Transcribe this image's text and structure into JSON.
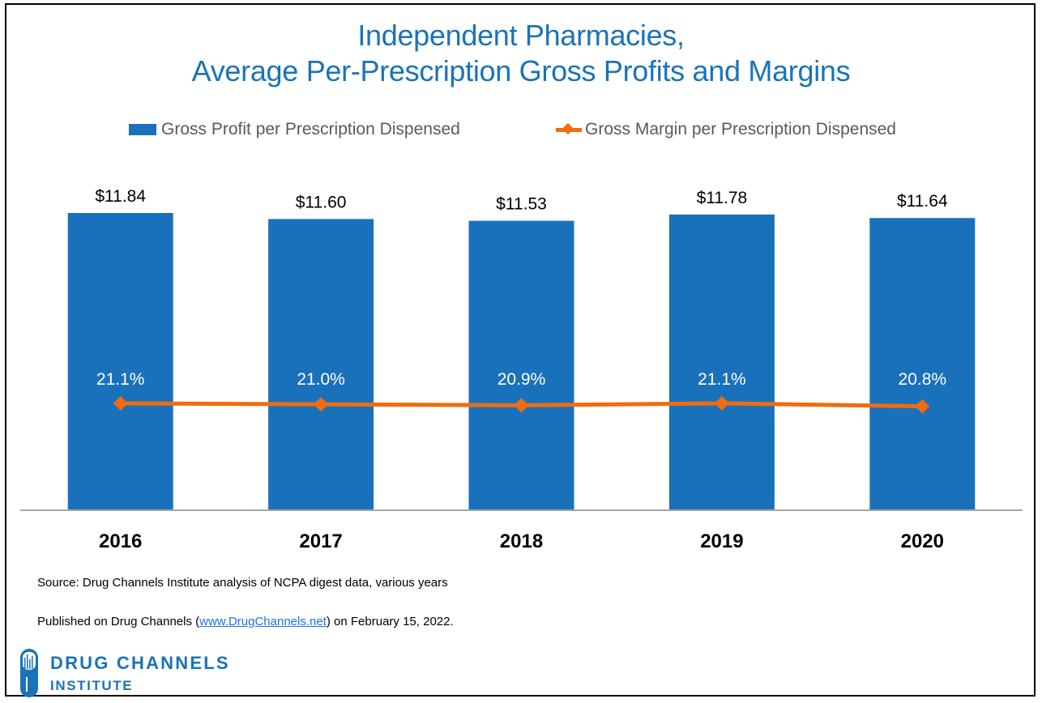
{
  "chart_data": {
    "type": "bar",
    "title": "Independent Pharmacies, Average Per-Prescription Gross Profits and Margins",
    "title_lines": [
      "Independent Pharmacies,",
      "Average Per-Prescription Gross Profits and Margins"
    ],
    "categories": [
      "2016",
      "2017",
      "2018",
      "2019",
      "2020"
    ],
    "series": [
      {
        "name": "Gross Profit per Prescription Dispensed",
        "type": "bar",
        "color": "#1a71bb",
        "values": [
          11.84,
          11.6,
          11.53,
          11.78,
          11.64
        ],
        "labels": [
          "$11.84",
          "$11.60",
          "$11.53",
          "$11.78",
          "$11.64"
        ]
      },
      {
        "name": "Gross Margin per Prescription Dispensed",
        "type": "line",
        "color": "#f06c0f",
        "marker": "diamond",
        "values": [
          21.1,
          21.0,
          20.9,
          21.1,
          20.8
        ],
        "labels": [
          "21.1%",
          "21.0%",
          "20.9%",
          "21.1%",
          "20.8%"
        ]
      }
    ],
    "xlabel": "",
    "ylabel": "",
    "ylim": [
      0,
      11.84
    ],
    "grid": false,
    "legend_position": "top-center",
    "axis_visible": false
  },
  "footer": {
    "source": "Source: Drug Channels Institute analysis of NCPA digest data, various years",
    "published_prefix": "Published on Drug Channels (",
    "published_link": "www.DrugChannels.net",
    "published_suffix": ") on February 15, 2022."
  },
  "logo": {
    "line1": "DRUG CHANNELS",
    "line2": "INSTITUTE",
    "icon": "pill-capsule-icon"
  },
  "colors": {
    "title": "#1a73b8",
    "bar": "#1a71bb",
    "line": "#f06c0f",
    "legend_text": "#595959",
    "link": "#1a73e8"
  }
}
